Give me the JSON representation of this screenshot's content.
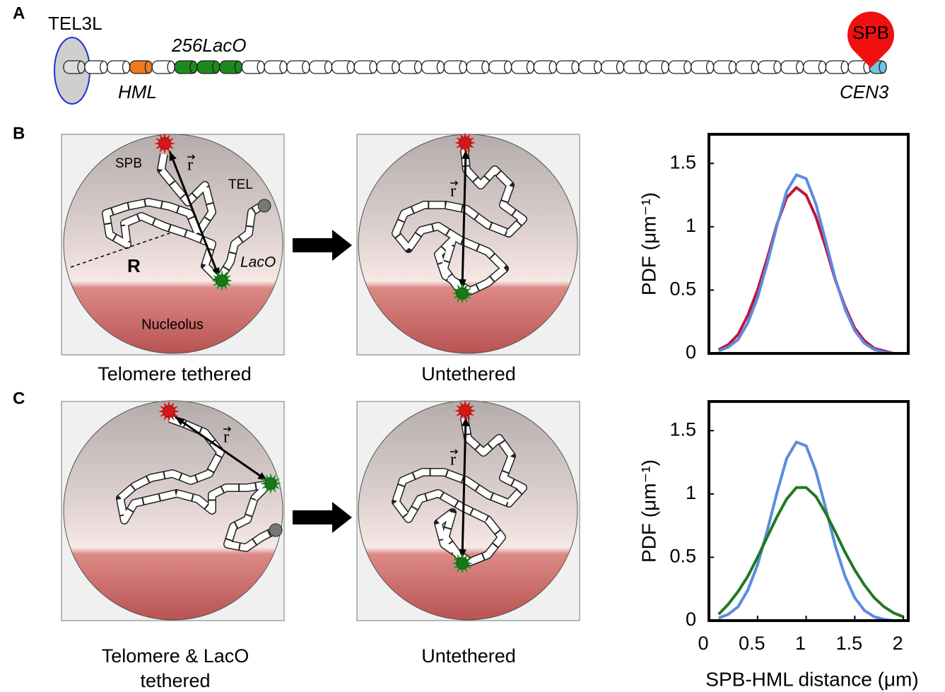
{
  "panel_labels": [
    "A",
    "B",
    "C"
  ],
  "panel_a": {
    "telomere": "TEL3L",
    "laco": "256LacO",
    "hml": "HML",
    "spb": "SPB",
    "centromere": "CEN3"
  },
  "panel_b": {
    "spb": "SPB",
    "r": "r",
    "tel": "TEL",
    "laco": "LacO",
    "radius": "R",
    "nucleolus": "Nucleolus",
    "r_untethered": "r",
    "caption_left": "Telomere tethered",
    "caption_right": "Untethered"
  },
  "panel_c": {
    "r_tethered": "r",
    "r_untethered": "r",
    "caption_left_lines": [
      "Telomere & LacO",
      "tethered"
    ],
    "caption_right": "Untethered"
  },
  "chart_data": [
    {
      "type": "line",
      "ylabel": "PDF (μm⁻¹)",
      "x": [
        0.1,
        0.2,
        0.3,
        0.4,
        0.5,
        0.6,
        0.7,
        0.8,
        0.9,
        1.0,
        1.1,
        1.2,
        1.3,
        1.4,
        1.5,
        1.6,
        1.7,
        1.8,
        1.9,
        2.0
      ],
      "series": [
        {
          "color": "#c0143c",
          "values": [
            0.03,
            0.07,
            0.15,
            0.3,
            0.5,
            0.75,
            1.02,
            1.23,
            1.31,
            1.25,
            1.08,
            0.84,
            0.58,
            0.37,
            0.2,
            0.1,
            0.04,
            0.02,
            0,
            0
          ]
        },
        {
          "color": "#5b8be0",
          "values": [
            0.02,
            0.05,
            0.11,
            0.24,
            0.44,
            0.71,
            1.01,
            1.28,
            1.41,
            1.38,
            1.18,
            0.89,
            0.59,
            0.35,
            0.18,
            0.08,
            0.03,
            0.01,
            0,
            0
          ]
        }
      ],
      "xlim": [
        0,
        2.05
      ],
      "ylim": [
        0,
        1.73
      ],
      "yticks": [
        0,
        0.5,
        1,
        1.5
      ]
    },
    {
      "type": "line",
      "ylabel": "PDF (μm⁻¹)",
      "xlabel": "SPB-HML distance (μm)",
      "x": [
        0.1,
        0.2,
        0.3,
        0.4,
        0.5,
        0.6,
        0.7,
        0.8,
        0.9,
        1.0,
        1.1,
        1.2,
        1.3,
        1.4,
        1.5,
        1.6,
        1.7,
        1.8,
        1.9,
        2.0
      ],
      "series": [
        {
          "color": "#5b8be0",
          "values": [
            0.02,
            0.05,
            0.11,
            0.24,
            0.44,
            0.71,
            1.01,
            1.28,
            1.41,
            1.38,
            1.18,
            0.89,
            0.59,
            0.35,
            0.18,
            0.08,
            0.03,
            0.01,
            0,
            0
          ]
        },
        {
          "color": "#1f7a1f",
          "values": [
            0.05,
            0.13,
            0.23,
            0.35,
            0.5,
            0.66,
            0.82,
            0.96,
            1.05,
            1.05,
            0.98,
            0.85,
            0.7,
            0.54,
            0.4,
            0.28,
            0.18,
            0.11,
            0.06,
            0.03
          ]
        }
      ],
      "xlim": [
        0,
        2.05
      ],
      "ylim": [
        0,
        1.73
      ],
      "xticks": [
        0,
        0.5,
        1,
        1.5,
        2
      ],
      "yticks": [
        0,
        0.5,
        1,
        1.5
      ]
    }
  ]
}
